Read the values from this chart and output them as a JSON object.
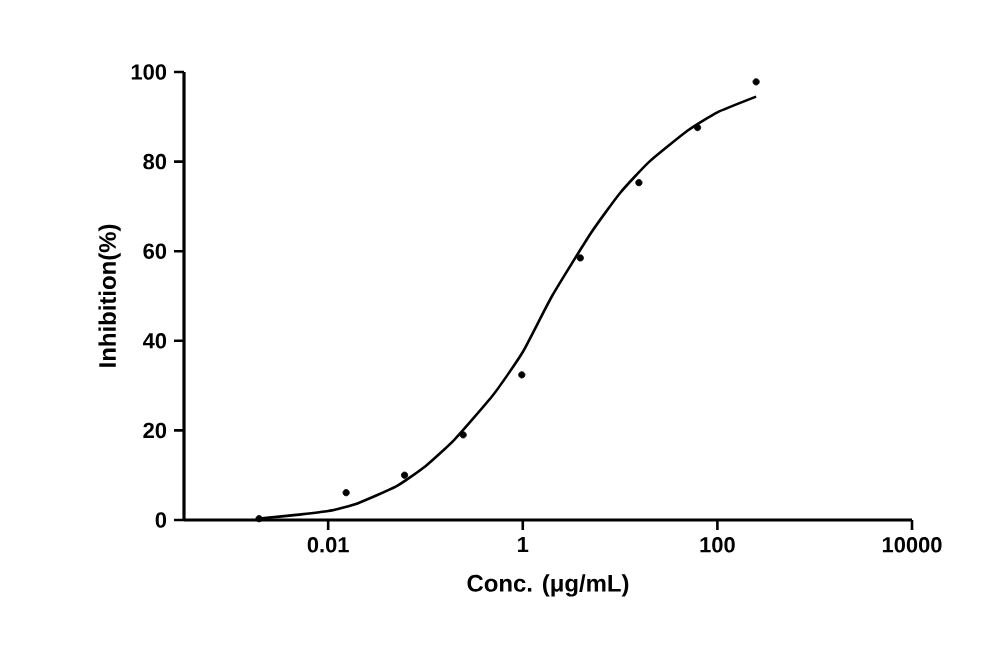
{
  "chart_data": {
    "type": "scatter",
    "xlabel": "Conc. (μg/mL)",
    "ylabel": "Inhibition(%)",
    "log": "x",
    "xlim": [
      0.00033,
      10000
    ],
    "ylim": [
      0,
      100
    ],
    "xticks": [
      0.01,
      1,
      100,
      10000
    ],
    "yticks": [
      0,
      20,
      40,
      60,
      80,
      100
    ],
    "grid": false,
    "series": [
      {
        "marker": "circle",
        "color": "#000000",
        "x": [
          0.00195,
          0.0153,
          0.061,
          0.244,
          0.977,
          3.9,
          15.6,
          62.5,
          250
        ],
        "values": [
          0.3,
          6.1,
          10.0,
          19.0,
          32.4,
          58.5,
          75.3,
          87.6,
          97.8
        ]
      },
      {
        "type": "line",
        "marker": "none",
        "color": "#000000",
        "x": [
          0.00195,
          0.005,
          0.01,
          0.02,
          0.05,
          0.1,
          0.2,
          0.5,
          1,
          2,
          5,
          10,
          20,
          50,
          100,
          250
        ],
        "values": [
          0.3,
          1.2,
          2.0,
          3.7,
          7.5,
          12,
          18,
          28,
          37.5,
          50,
          64,
          73,
          80,
          87,
          91,
          94.5
        ]
      }
    ]
  }
}
